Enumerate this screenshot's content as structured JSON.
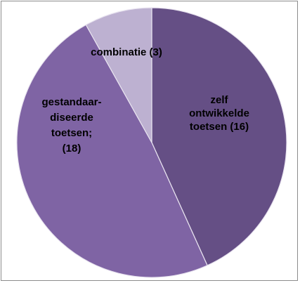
{
  "chart_data": {
    "type": "pie",
    "slices": [
      {
        "label_lines": [
          "zelf",
          "ontwikkelde",
          "toetsen (16)"
        ],
        "value": 16,
        "color": "#654f85"
      },
      {
        "label_lines": [
          "gestandaar-",
          "diseerde",
          "toetsen;",
          "(18)"
        ],
        "value": 18,
        "color": "#7f64a4"
      },
      {
        "label_lines": [
          "combinatie (3)"
        ],
        "value": 3,
        "color": "#bdb1d1"
      }
    ],
    "slice_border_color": "#e9e4f0"
  }
}
